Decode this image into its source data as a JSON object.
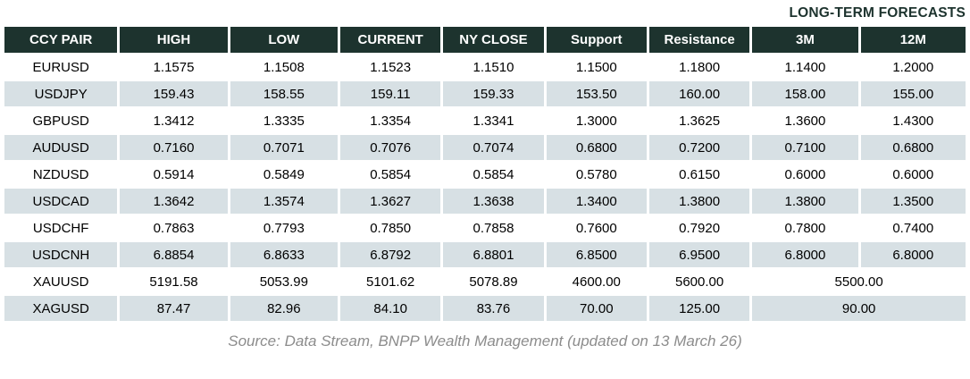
{
  "forecast_label": "LONG-TERM FORECASTS",
  "table": {
    "columns": [
      "CCY PAIR",
      "HIGH",
      "LOW",
      "CURRENT",
      "NY CLOSE",
      "Support",
      "Resistance",
      "3M",
      "12M"
    ],
    "rows": [
      {
        "pair": "EURUSD",
        "high": "1.1575",
        "low": "1.1508",
        "current": "1.1523",
        "ny_close": "1.1510",
        "support": "1.1500",
        "resistance": "1.1800",
        "m3": "1.1400",
        "m12": "1.2000"
      },
      {
        "pair": "USDJPY",
        "high": "159.43",
        "low": "158.55",
        "current": "159.11",
        "ny_close": "159.33",
        "support": "153.50",
        "resistance": "160.00",
        "m3": "158.00",
        "m12": "155.00"
      },
      {
        "pair": "GBPUSD",
        "high": "1.3412",
        "low": "1.3335",
        "current": "1.3354",
        "ny_close": "1.3341",
        "support": "1.3000",
        "resistance": "1.3625",
        "m3": "1.3600",
        "m12": "1.4300"
      },
      {
        "pair": "AUDUSD",
        "high": "0.7160",
        "low": "0.7071",
        "current": "0.7076",
        "ny_close": "0.7074",
        "support": "0.6800",
        "resistance": "0.7200",
        "m3": "0.7100",
        "m12": "0.6800"
      },
      {
        "pair": "NZDUSD",
        "high": "0.5914",
        "low": "0.5849",
        "current": "0.5854",
        "ny_close": "0.5854",
        "support": "0.5780",
        "resistance": "0.6150",
        "m3": "0.6000",
        "m12": "0.6000"
      },
      {
        "pair": "USDCAD",
        "high": "1.3642",
        "low": "1.3574",
        "current": "1.3627",
        "ny_close": "1.3638",
        "support": "1.3400",
        "resistance": "1.3800",
        "m3": "1.3800",
        "m12": "1.3500"
      },
      {
        "pair": "USDCHF",
        "high": "0.7863",
        "low": "0.7793",
        "current": "0.7850",
        "ny_close": "0.7858",
        "support": "0.7600",
        "resistance": "0.7920",
        "m3": "0.7800",
        "m12": "0.7400"
      },
      {
        "pair": "USDCNH",
        "high": "6.8854",
        "low": "6.8633",
        "current": "6.8792",
        "ny_close": "6.8801",
        "support": "6.8500",
        "resistance": "6.9500",
        "m3": "6.8000",
        "m12": "6.8000"
      },
      {
        "pair": "XAUUSD",
        "high": "5191.58",
        "low": "5053.99",
        "current": "5101.62",
        "ny_close": "5078.89",
        "support": "4600.00",
        "resistance": "5600.00",
        "forecast_merged": "5500.00"
      },
      {
        "pair": "XAGUSD",
        "high": "87.47",
        "low": "82.96",
        "current": "84.10",
        "ny_close": "83.76",
        "support": "70.00",
        "resistance": "125.00",
        "forecast_merged": "90.00"
      }
    ]
  },
  "source_note": "Source: Data Stream, BNPP Wealth Management (updated on 13 March 26)",
  "colors": {
    "header_bg": "#1d332e",
    "header_text": "#ffffff",
    "stripe_bg": "#d7e0e4",
    "text": "#000000",
    "source_text": "#8c8c8c"
  }
}
